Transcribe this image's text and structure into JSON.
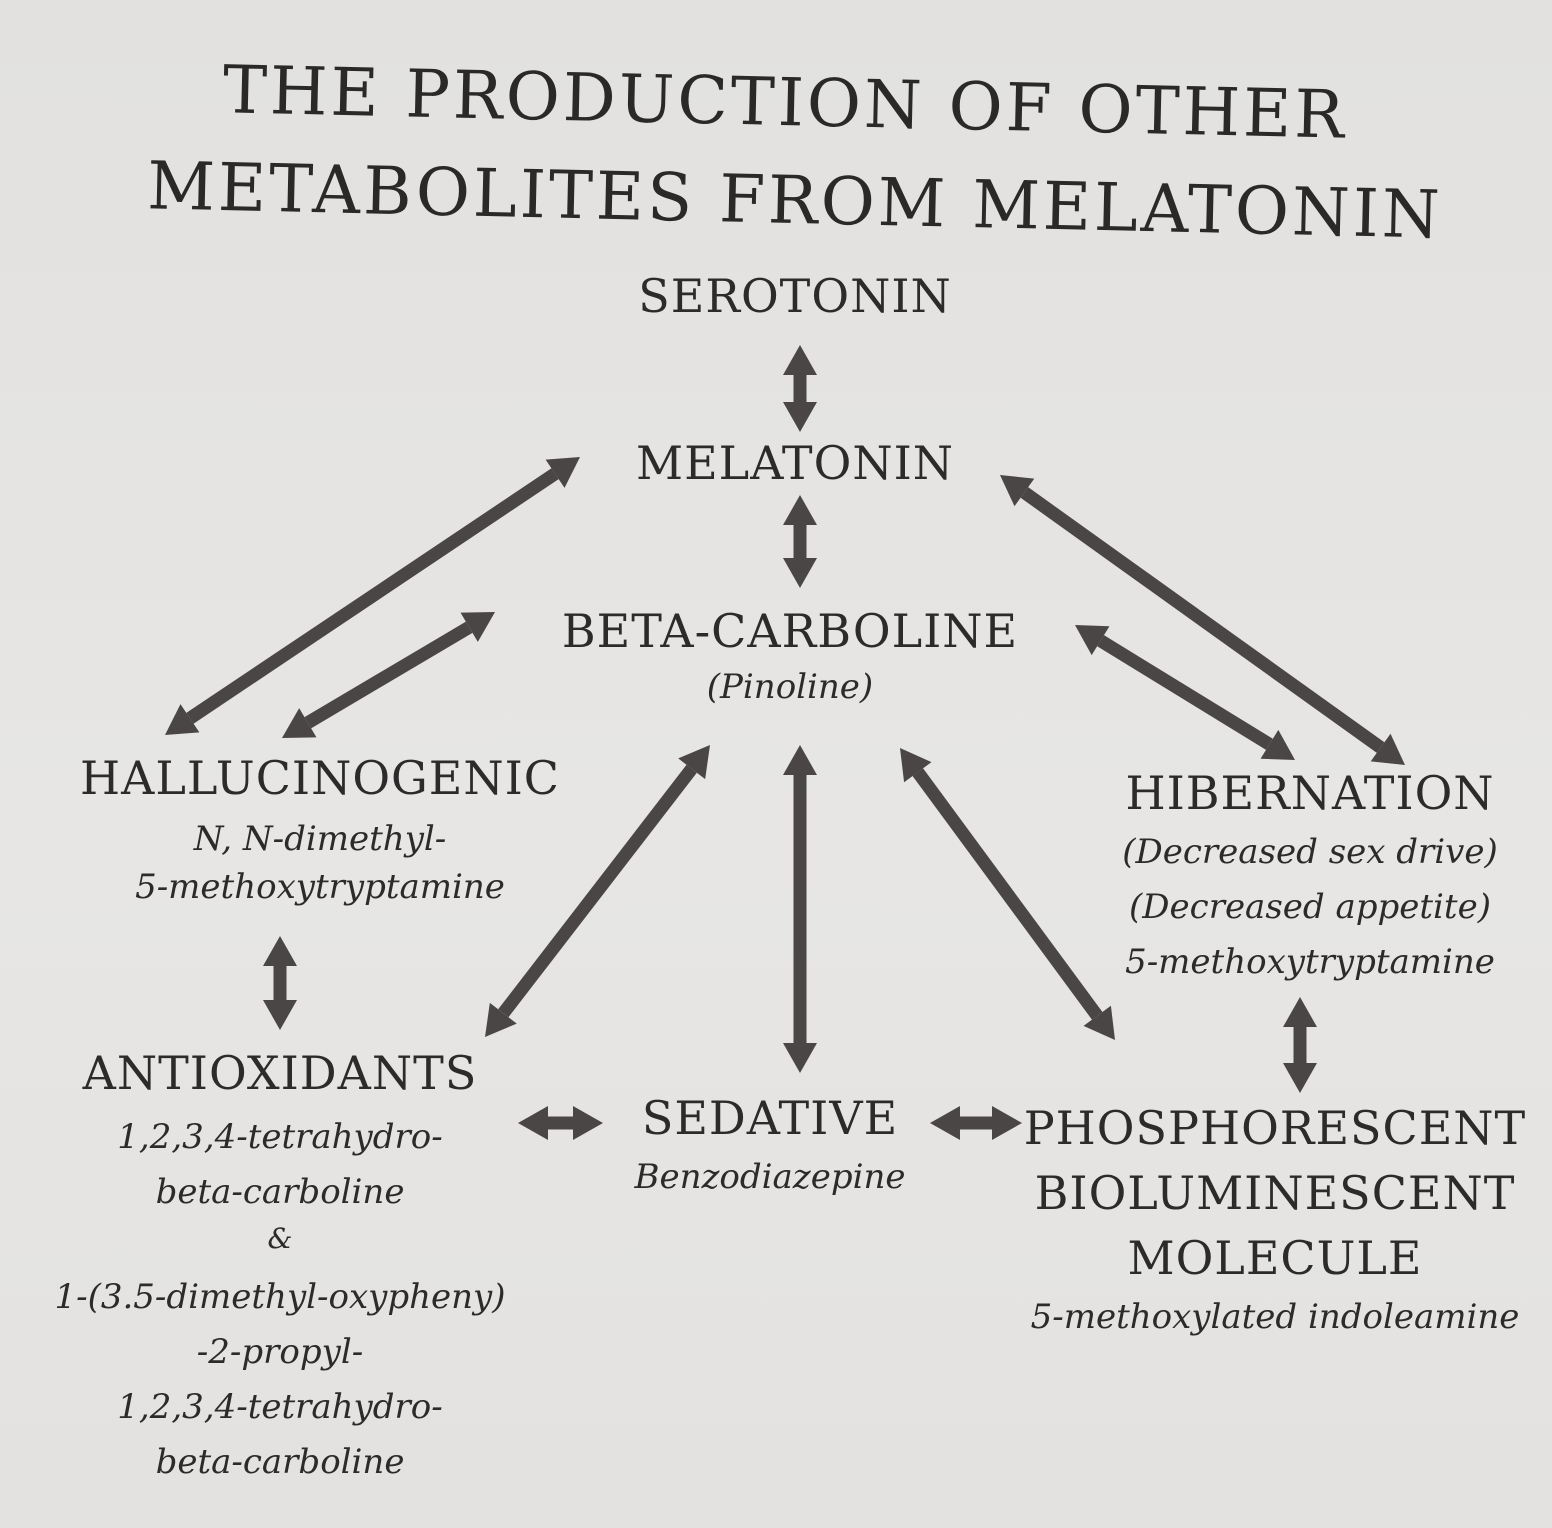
{
  "title": {
    "line1": "THE PRODUCTION OF OTHER",
    "line2": "METABOLITES FROM MELATONIN"
  },
  "nodes": {
    "serotonin": {
      "label": "SEROTONIN"
    },
    "melatonin": {
      "label": "MELATONIN"
    },
    "beta_carboline": {
      "label": "BETA-CARBOLINE",
      "sub": "(Pinoline)"
    },
    "hallucinogenic": {
      "label": "HALLUCINOGENIC",
      "lines": [
        "N, N-dimethyl-",
        "5-methoxytryptamine"
      ]
    },
    "hibernation": {
      "label": "HIBERNATION",
      "lines": [
        "(Decreased sex drive)",
        "(Decreased appetite)",
        "5-methoxytryptamine"
      ]
    },
    "antioxidants": {
      "label": "ANTIOXIDANTS",
      "lines": [
        "1,2,3,4-tetrahydro-",
        "beta-carboline",
        "&",
        "1-(3.5-dimethyl-oxypheny)",
        "-2-propyl-",
        "1,2,3,4-tetrahydro-",
        "beta-carboline"
      ]
    },
    "sedative": {
      "label": "SEDATIVE",
      "sub": "Benzodiazepine"
    },
    "phosphorescent": {
      "lines": [
        "PHOSPHORESCENT",
        "BIOLUMINESCENT",
        "MOLECULE"
      ],
      "sub": "5-methoxylated indoleamine"
    }
  },
  "edges": [
    {
      "from": "serotonin",
      "to": "melatonin",
      "bidirectional": true
    },
    {
      "from": "melatonin",
      "to": "beta_carboline",
      "bidirectional": true
    },
    {
      "from": "melatonin",
      "to": "hallucinogenic",
      "bidirectional": true
    },
    {
      "from": "melatonin",
      "to": "hibernation",
      "bidirectional": true
    },
    {
      "from": "beta_carboline",
      "to": "hallucinogenic",
      "bidirectional": true
    },
    {
      "from": "beta_carboline",
      "to": "hibernation",
      "bidirectional": true
    },
    {
      "from": "beta_carboline",
      "to": "antioxidants",
      "bidirectional": true
    },
    {
      "from": "beta_carboline",
      "to": "sedative",
      "bidirectional": true
    },
    {
      "from": "beta_carboline",
      "to": "phosphorescent",
      "bidirectional": true
    },
    {
      "from": "hallucinogenic",
      "to": "antioxidants",
      "bidirectional": true
    },
    {
      "from": "hibernation",
      "to": "phosphorescent",
      "bidirectional": true
    },
    {
      "from": "antioxidants",
      "to": "sedative",
      "bidirectional": true
    },
    {
      "from": "sedative",
      "to": "phosphorescent",
      "bidirectional": true
    }
  ],
  "colors": {
    "ink": "#2c2a2a",
    "arrow": "#4a4646",
    "paper": "#e4e3e1"
  }
}
